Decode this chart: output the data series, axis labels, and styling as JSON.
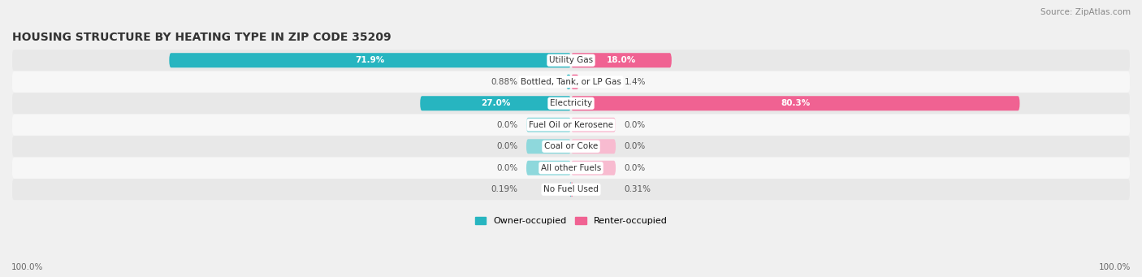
{
  "title": "HOUSING STRUCTURE BY HEATING TYPE IN ZIP CODE 35209",
  "source": "Source: ZipAtlas.com",
  "categories": [
    "Utility Gas",
    "Bottled, Tank, or LP Gas",
    "Electricity",
    "Fuel Oil or Kerosene",
    "Coal or Coke",
    "All other Fuels",
    "No Fuel Used"
  ],
  "owner_values": [
    71.9,
    0.88,
    27.0,
    0.0,
    0.0,
    0.0,
    0.19
  ],
  "renter_values": [
    18.0,
    1.4,
    80.3,
    0.0,
    0.0,
    0.0,
    0.31
  ],
  "owner_labels": [
    "71.9%",
    "0.88%",
    "27.0%",
    "0.0%",
    "0.0%",
    "0.0%",
    "0.19%"
  ],
  "renter_labels": [
    "18.0%",
    "1.4%",
    "80.3%",
    "0.0%",
    "0.0%",
    "0.0%",
    "0.31%"
  ],
  "owner_color": "#27b5c0",
  "owner_color_light": "#8ed8dc",
  "renter_color": "#f06292",
  "renter_color_light": "#f8bbd0",
  "owner_label": "Owner-occupied",
  "renter_label": "Renter-occupied",
  "background_color": "#f0f0f0",
  "row_bg_light": "#f7f7f7",
  "row_bg_dark": "#e8e8e8",
  "max_val": 100.0,
  "placeholder_val": 8.0,
  "axis_label_left": "100.0%",
  "axis_label_right": "100.0%",
  "title_fontsize": 10,
  "source_fontsize": 7.5,
  "bar_label_fontsize": 7.5,
  "cat_label_fontsize": 7.5
}
